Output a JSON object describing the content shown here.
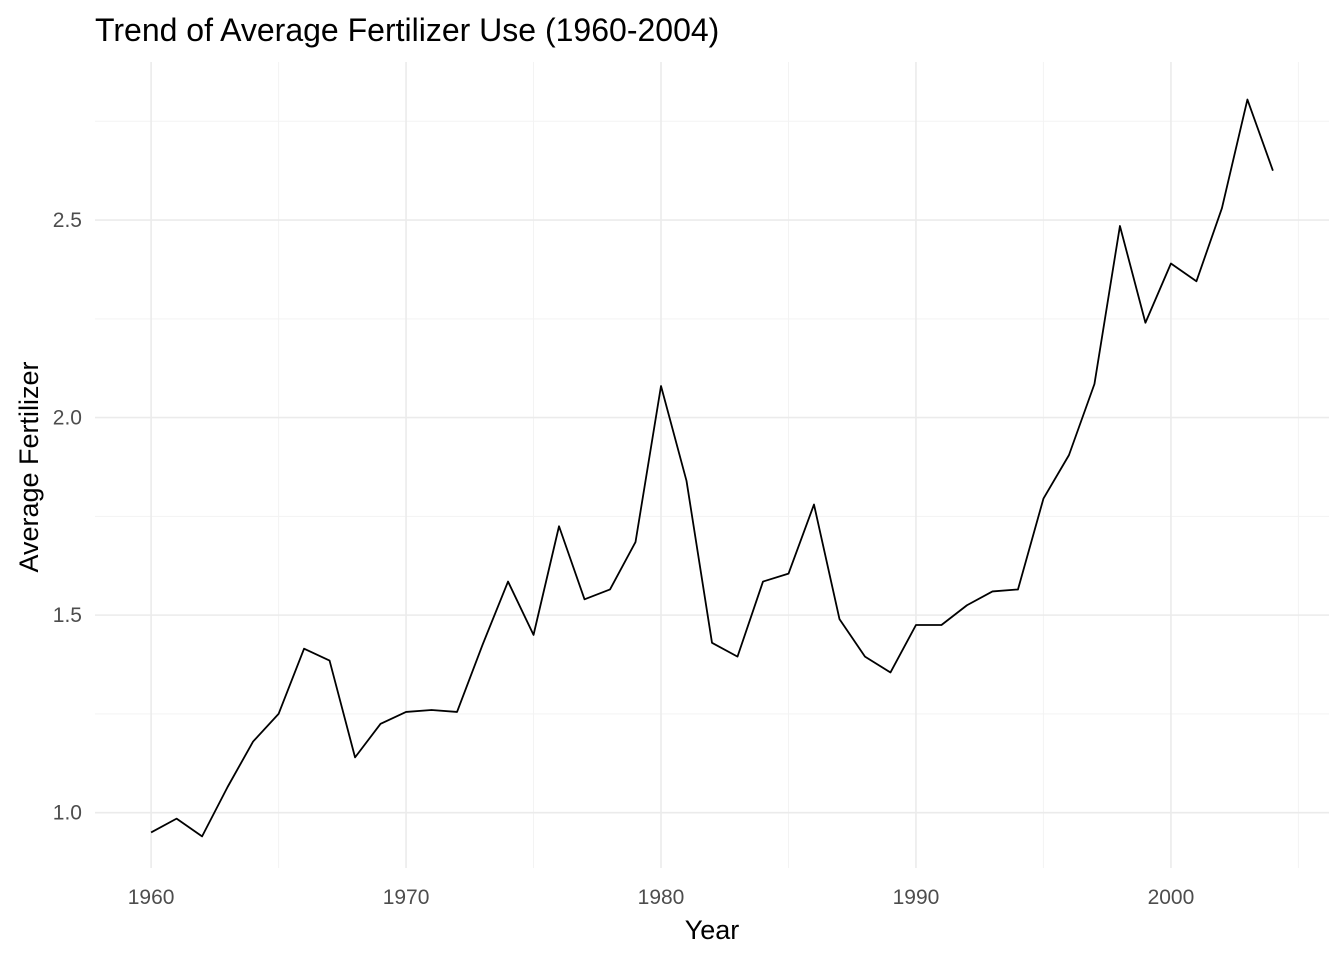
{
  "chart_data": {
    "type": "line",
    "title": "Trend of Average Fertilizer Use (1960-2004)",
    "xlabel": "Year",
    "ylabel": "Average Fertilizer",
    "xlim": [
      1957.8,
      2006.2
    ],
    "ylim": [
      0.86,
      2.9
    ],
    "x_ticks": [
      1960,
      1970,
      1980,
      1990,
      2000
    ],
    "x_tick_labels": [
      "1960",
      "1970",
      "1980",
      "1990",
      "2000"
    ],
    "x_minor_ticks": [
      1965,
      1975,
      1985,
      1995,
      2005
    ],
    "y_ticks": [
      1.0,
      1.5,
      2.0,
      2.5
    ],
    "y_tick_labels": [
      "1.0",
      "1.5",
      "2.0",
      "2.5"
    ],
    "y_minor_ticks": [
      1.25,
      1.75,
      2.25,
      2.75
    ],
    "grid": true,
    "legend": "none",
    "line_color": "#000000",
    "series": [
      {
        "x": [
          1960,
          1961,
          1962,
          1963,
          1964,
          1965,
          1966,
          1967,
          1968,
          1969,
          1970,
          1971,
          1972,
          1973,
          1974,
          1975,
          1976,
          1977,
          1978,
          1979,
          1980,
          1981,
          1982,
          1983,
          1984,
          1985,
          1986,
          1987,
          1988,
          1989,
          1990,
          1991,
          1992,
          1993,
          1994,
          1995,
          1996,
          1997,
          1998,
          1999,
          2000,
          2001,
          2002,
          2003,
          2004
        ],
        "values": [
          0.95,
          0.985,
          0.94,
          1.065,
          1.18,
          1.25,
          1.415,
          1.385,
          1.14,
          1.225,
          1.255,
          1.26,
          1.255,
          1.425,
          1.585,
          1.45,
          1.725,
          1.54,
          1.565,
          1.685,
          2.08,
          1.84,
          1.43,
          1.395,
          1.585,
          1.605,
          1.78,
          1.49,
          1.395,
          1.355,
          1.475,
          1.475,
          1.525,
          1.56,
          1.565,
          1.795,
          1.905,
          2.085,
          2.485,
          2.24,
          2.39,
          2.345,
          2.53,
          2.805,
          2.625
        ]
      }
    ]
  }
}
